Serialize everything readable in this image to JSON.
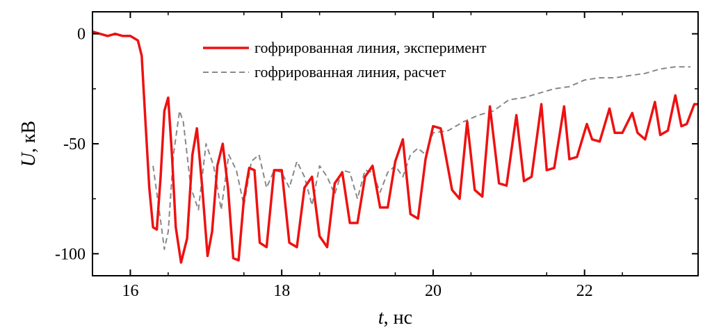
{
  "chart_data": {
    "type": "line",
    "title": "",
    "xlabel_var": "t",
    "xlabel_unit": ", нс",
    "ylabel_var": "U",
    "ylabel_unit": ", кВ",
    "xlim": [
      15.5,
      23.5
    ],
    "ylim": [
      -110,
      10
    ],
    "xticks": [
      16,
      18,
      20,
      22
    ],
    "yticks": [
      0,
      -50,
      -100
    ],
    "xtick_labels": [
      "16",
      "18",
      "20",
      "22"
    ],
    "ytick_labels": [
      "0",
      "-50",
      "-100"
    ],
    "grid": false,
    "legend_position": "top-center",
    "series": [
      {
        "name": "гофрированная линия, эксперимент",
        "color": "#ee1111",
        "style": "solid",
        "x": [
          15.5,
          15.6,
          15.7,
          15.8,
          15.9,
          16.0,
          16.1,
          16.15,
          16.2,
          16.25,
          16.3,
          16.35,
          16.4,
          16.45,
          16.5,
          16.55,
          16.6,
          16.67,
          16.75,
          16.82,
          16.88,
          16.95,
          17.02,
          17.08,
          17.15,
          17.22,
          17.29,
          17.36,
          17.43,
          17.5,
          17.57,
          17.64,
          17.71,
          17.8,
          17.9,
          18.0,
          18.1,
          18.2,
          18.3,
          18.4,
          18.5,
          18.6,
          18.7,
          18.8,
          18.9,
          19.0,
          19.1,
          19.2,
          19.3,
          19.4,
          19.5,
          19.6,
          19.7,
          19.8,
          19.9,
          20.0,
          20.1,
          20.25,
          20.35,
          20.45,
          20.55,
          20.65,
          20.75,
          20.87,
          20.97,
          21.1,
          21.2,
          21.3,
          21.43,
          21.5,
          21.6,
          21.73,
          21.8,
          21.9,
          22.03,
          22.1,
          22.2,
          22.33,
          22.4,
          22.5,
          22.63,
          22.7,
          22.8,
          22.93,
          23.0,
          23.1,
          23.2,
          23.28,
          23.35,
          23.45,
          23.5
        ],
        "y": [
          1,
          0,
          -1,
          0,
          -1,
          -1,
          -3,
          -10,
          -40,
          -70,
          -88,
          -89,
          -65,
          -35,
          -29,
          -55,
          -88,
          -104,
          -93,
          -55,
          -43,
          -70,
          -101,
          -90,
          -60,
          -50,
          -70,
          -102,
          -103,
          -75,
          -61,
          -62,
          -95,
          -97,
          -62,
          -62,
          -95,
          -97,
          -70,
          -65,
          -92,
          -97,
          -68,
          -63,
          -86,
          -86,
          -65,
          -60,
          -79,
          -79,
          -58,
          -48,
          -82,
          -84,
          -57,
          -42,
          -43,
          -71,
          -75,
          -40,
          -71,
          -74,
          -33,
          -68,
          -69,
          -37,
          -67,
          -65,
          -32,
          -62,
          -61,
          -33,
          -57,
          -56,
          -41,
          -48,
          -49,
          -34,
          -45,
          -45,
          -36,
          -45,
          -48,
          -31,
          -46,
          -44,
          -28,
          -42,
          -41,
          -32,
          -32
        ]
      },
      {
        "name": "гофрированная линия, расчет",
        "color": "#888888",
        "style": "dashed",
        "x": [
          16.3,
          16.4,
          16.45,
          16.5,
          16.57,
          16.65,
          16.7,
          16.8,
          16.9,
          17.0,
          17.1,
          17.2,
          17.3,
          17.4,
          17.5,
          17.6,
          17.7,
          17.8,
          17.9,
          18.0,
          18.1,
          18.2,
          18.3,
          18.4,
          18.5,
          18.6,
          18.7,
          18.8,
          18.9,
          19.0,
          19.1,
          19.2,
          19.3,
          19.4,
          19.5,
          19.6,
          19.7,
          19.8,
          19.9,
          20.0,
          20.2,
          20.4,
          20.6,
          20.8,
          21.0,
          21.2,
          21.4,
          21.6,
          21.8,
          22.0,
          22.2,
          22.4,
          22.6,
          22.8,
          23.0,
          23.2,
          23.4
        ],
        "y": [
          -60,
          -85,
          -98,
          -90,
          -55,
          -35,
          -40,
          -70,
          -80,
          -50,
          -60,
          -80,
          -55,
          -62,
          -78,
          -58,
          -55,
          -70,
          -62,
          -63,
          -70,
          -58,
          -65,
          -78,
          -60,
          -65,
          -73,
          -62,
          -63,
          -75,
          -62,
          -63,
          -72,
          -63,
          -60,
          -65,
          -55,
          -52,
          -55,
          -45,
          -44,
          -40,
          -37,
          -35,
          -30,
          -29,
          -27,
          -25,
          -24,
          -21,
          -20,
          -20,
          -19,
          -18,
          -16,
          -15,
          -15
        ]
      }
    ]
  }
}
